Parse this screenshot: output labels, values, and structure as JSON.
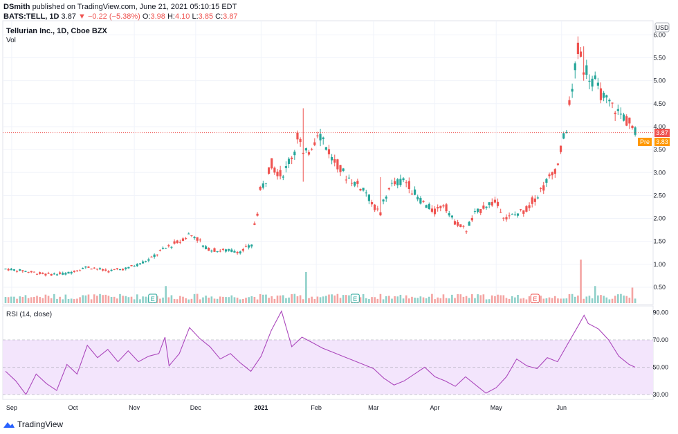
{
  "header": {
    "author": "DSmith",
    "published_text": "published on TradingView.com, June 21, 2021 05:10:15 EDT",
    "symbol": "BATS:TELL, 1D",
    "last": "3.87",
    "change": "−0.22 (−5.38%)",
    "o_label": "O:",
    "o": "3.98",
    "h_label": "H:",
    "h": "4.10",
    "l_label": "L:",
    "l": "3.85",
    "c_label": "C:",
    "c": "3.87"
  },
  "legend": {
    "title": "Tellurian Inc., 1D, Cboe BZX",
    "vol": "Vol"
  },
  "price_axis": {
    "currency": "USD",
    "last_label": "3.87",
    "pre_tag": "Pre",
    "pre_label": "3.83"
  },
  "rsi_panel": {
    "title": "RSI (14, close)"
  },
  "footer": {
    "brand": "TradingView"
  },
  "colors": {
    "up": "#26a69a",
    "down": "#ef5350",
    "up_vol": "#8fd0c9",
    "down_vol": "#f4a4a2",
    "rsi_line": "#ab47bc",
    "rsi_band": "#f3e5fc"
  },
  "chart_data": [
    {
      "type": "candlestick",
      "title": "Tellurian Inc., 1D, Cboe BZX",
      "y_ticks": [
        "6.00",
        "5.50",
        "5.00",
        "4.50",
        "4.00",
        "3.50",
        "3.00",
        "2.50",
        "2.00",
        "1.50",
        "1.00",
        "0.50"
      ],
      "ylim": [
        0.2,
        6.25
      ],
      "x_ticks": [
        "Sep",
        "Oct",
        "Nov",
        "Dec",
        "2021",
        "Feb",
        "Mar",
        "Apr",
        "May",
        "Jun"
      ],
      "x_ticks_day": [
        3,
        33,
        63,
        93,
        125,
        152,
        180,
        210,
        240,
        272
      ],
      "earnings_markers": [
        "E",
        "E",
        "E"
      ],
      "earnings_day": [
        72,
        171,
        259
      ],
      "last_price_line": 3.87,
      "close_series": {
        "day": [
          0,
          10,
          20,
          30,
          40,
          50,
          60,
          70,
          78,
          85,
          90,
          93,
          98,
          103,
          110,
          115,
          120,
          125,
          130,
          135,
          140,
          143,
          146,
          150,
          153,
          160,
          165,
          170,
          175,
          180,
          183,
          188,
          195,
          200,
          205,
          210,
          215,
          218,
          225,
          230,
          235,
          240,
          245,
          250,
          255,
          260,
          265,
          270,
          272,
          275,
          278,
          280,
          283,
          287,
          290,
          294,
          299,
          305,
          308
        ],
        "close": [
          0.9,
          0.85,
          0.78,
          0.8,
          0.95,
          0.85,
          0.92,
          1.1,
          1.35,
          1.5,
          1.65,
          1.6,
          1.35,
          1.3,
          1.3,
          1.28,
          1.4,
          2.6,
          3.2,
          2.9,
          3.35,
          3.8,
          3.35,
          3.6,
          3.9,
          3.3,
          3.0,
          2.8,
          2.65,
          2.3,
          2.1,
          2.7,
          2.85,
          2.55,
          2.3,
          2.15,
          2.35,
          2.0,
          1.75,
          2.1,
          2.3,
          2.35,
          2.0,
          2.1,
          2.2,
          2.5,
          2.8,
          3.15,
          3.5,
          4.2,
          5.0,
          5.65,
          5.3,
          5.05,
          4.8,
          4.55,
          4.35,
          4.09,
          3.87
        ],
        "wick": [
          [
            146,
            2.8,
            4.4
          ],
          [
            163,
            3.1,
            4.15
          ],
          [
            183,
            2.05,
            2.9
          ],
          [
            278,
            3.55,
            5.15
          ],
          [
            283,
            5.0,
            5.75
          ]
        ]
      }
    },
    {
      "type": "bar",
      "title": "Vol",
      "description": "volume, relative units (no scale printed)",
      "spikes": [
        [
          78,
          0.55
        ],
        [
          147,
          1.0
        ],
        [
          152,
          0.75
        ],
        [
          208,
          0.8
        ],
        [
          281,
          1.4
        ],
        [
          285,
          0.65
        ],
        [
          288,
          0.55
        ],
        [
          307,
          0.5
        ]
      ]
    },
    {
      "type": "line",
      "title": "RSI (14, close)",
      "y_ticks": [
        "90.00",
        "70.00",
        "50.00",
        "30.00"
      ],
      "ylim": [
        27,
        92
      ],
      "band": [
        30,
        70
      ],
      "x": [
        0,
        5,
        10,
        15,
        20,
        25,
        30,
        35,
        40,
        45,
        50,
        55,
        60,
        65,
        70,
        75,
        78,
        80,
        85,
        90,
        95,
        100,
        105,
        110,
        115,
        120,
        125,
        130,
        135,
        140,
        145,
        150,
        155,
        160,
        165,
        170,
        175,
        180,
        185,
        190,
        195,
        200,
        205,
        210,
        215,
        220,
        225,
        230,
        235,
        240,
        245,
        250,
        255,
        260,
        265,
        270,
        275,
        280,
        283,
        285,
        290,
        295,
        300,
        305,
        308
      ],
      "y": [
        47,
        40,
        30,
        45,
        38,
        33,
        52,
        45,
        66,
        57,
        63,
        54,
        62,
        54,
        58,
        60,
        72,
        51,
        60,
        79,
        71,
        65,
        56,
        60,
        53,
        47,
        58,
        77,
        91,
        65,
        72,
        68,
        64,
        61,
        58,
        55,
        52,
        49,
        42,
        37,
        40,
        45,
        50,
        43,
        40,
        36,
        43,
        37,
        31,
        35,
        43,
        56,
        51,
        49,
        57,
        54,
        67,
        80,
        88,
        82,
        78,
        70,
        58,
        52,
        50
      ]
    }
  ]
}
